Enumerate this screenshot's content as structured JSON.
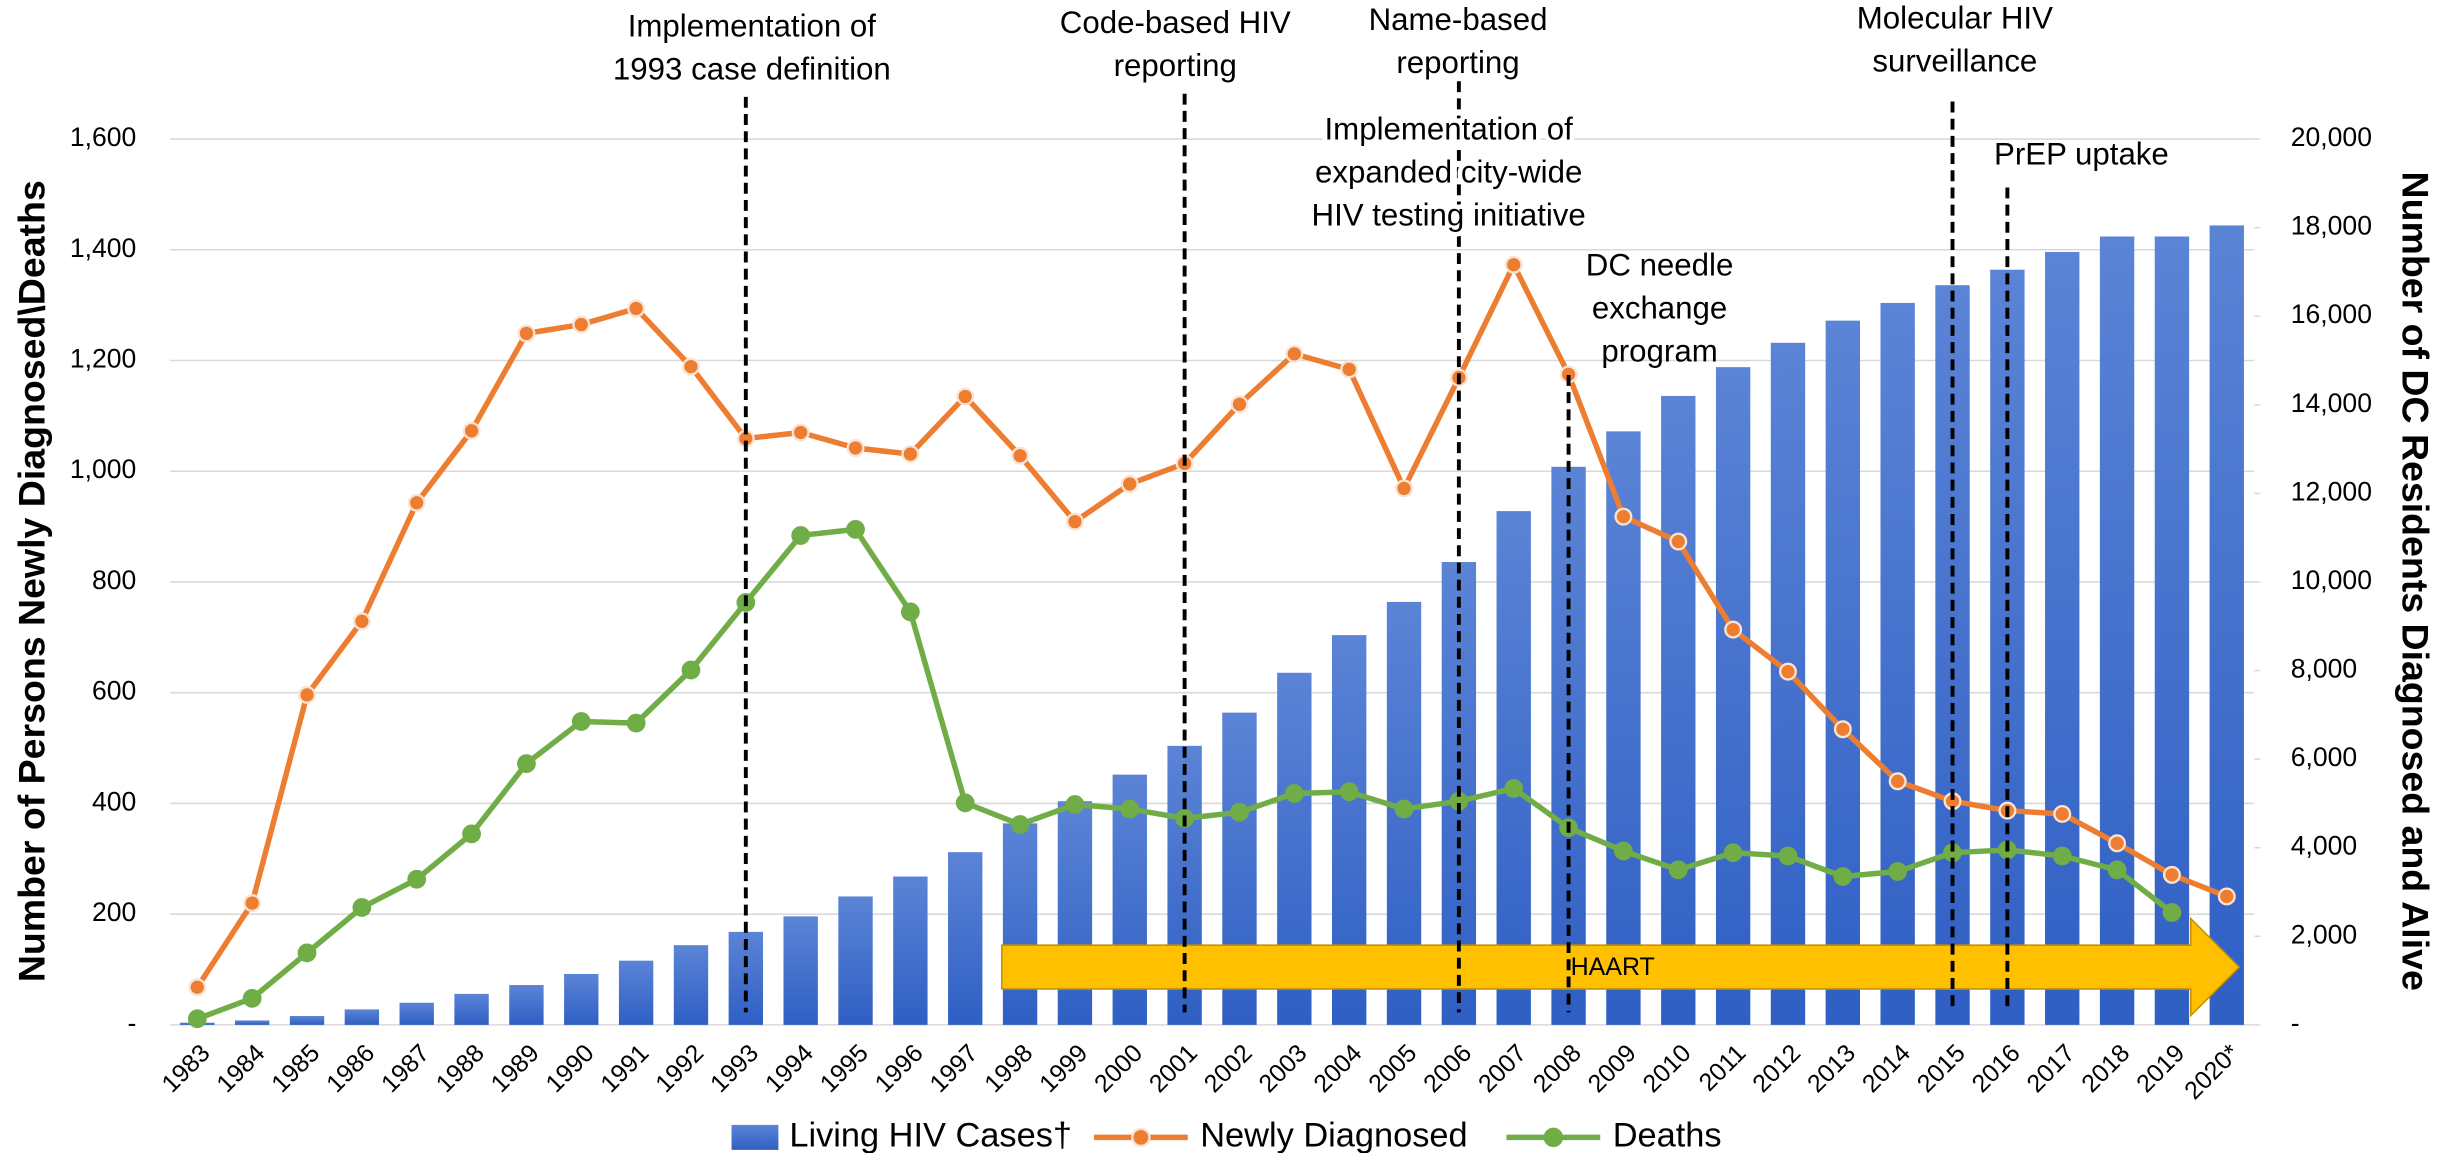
{
  "chart_data": {
    "type": "bar_line",
    "categories": [
      "1983",
      "1984",
      "1985",
      "1986",
      "1987",
      "1988",
      "1989",
      "1990",
      "1991",
      "1992",
      "1993",
      "1994",
      "1995",
      "1996",
      "1997",
      "1998",
      "1999",
      "2000",
      "2001",
      "2002",
      "2003",
      "2004",
      "2005",
      "2006",
      "2007",
      "2008",
      "2009",
      "2010",
      "2011",
      "2012",
      "2013",
      "2014",
      "2015",
      "2016",
      "2017",
      "2018",
      "2019",
      "2020*"
    ],
    "ylabel": "Number of Persons Newly Diagnosed\\Deaths",
    "y2label": "Number of DC Residents Diagnosed and Alive",
    "ylim": [
      0,
      1600
    ],
    "yticks": [
      {
        "value": 0,
        "label": "-"
      },
      200,
      400,
      600,
      800,
      {
        "value": 1000,
        "label": "1,000"
      },
      {
        "value": 1200,
        "label": "1,200"
      },
      {
        "value": 1400,
        "label": "1,400"
      },
      {
        "value": 1600,
        "label": "1,600"
      }
    ],
    "y2lim": [
      0,
      20000
    ],
    "y2ticks": [
      {
        "value": 0,
        "label": "-"
      },
      {
        "value": 2000,
        "label": "2,000"
      },
      {
        "value": 4000,
        "label": "4,000"
      },
      {
        "value": 6000,
        "label": "6,000"
      },
      {
        "value": 8000,
        "label": "8,000"
      },
      {
        "value": 10000,
        "label": "10,000"
      },
      {
        "value": 12000,
        "label": "12,000"
      },
      {
        "value": 14000,
        "label": "14,000"
      },
      {
        "value": 16000,
        "label": "16,000"
      },
      {
        "value": 18000,
        "label": "18,000"
      },
      {
        "value": 20000,
        "label": "20,000"
      }
    ],
    "grid": true,
    "legend": "bottom",
    "series": [
      {
        "name": "Living HIV Cases†",
        "kind": "bar",
        "axis": "y2",
        "color": "#3d6ccb",
        "values": [
          50,
          100,
          200,
          350,
          500,
          700,
          900,
          1150,
          1450,
          1800,
          2100,
          2450,
          2900,
          3350,
          3900,
          4550,
          5050,
          5650,
          6300,
          7050,
          7950,
          8800,
          9550,
          10450,
          11600,
          12600,
          13400,
          14200,
          14850,
          15400,
          15900,
          16300,
          16700,
          17050,
          17450,
          17800,
          17800,
          18050
        ]
      },
      {
        "name": "Newly Diagnosed",
        "kind": "line",
        "color": "#ed7d31",
        "values": [
          68,
          220,
          596,
          729,
          943,
          1073,
          1249,
          1265,
          1294,
          1189,
          1059,
          1070,
          1042,
          1031,
          1135,
          1028,
          909,
          977,
          1014,
          1121,
          1212,
          1184,
          969,
          1169,
          1373,
          1175,
          918,
          873,
          714,
          638,
          534,
          440,
          404,
          387,
          381,
          328,
          271,
          232
        ]
      },
      {
        "name": "Deaths",
        "kind": "line",
        "color": "#70ad47",
        "values": [
          11,
          48,
          130,
          212,
          263,
          345,
          472,
          548,
          545,
          641,
          763,
          884,
          895,
          746,
          401,
          362,
          398,
          390,
          373,
          384,
          418,
          421,
          390,
          404,
          427,
          356,
          314,
          280,
          311,
          305,
          268,
          277,
          311,
          316,
          305,
          280,
          203,
          null
        ]
      }
    ],
    "annotations": [
      {
        "x": "1993",
        "lines": [
          "Implementation of",
          "1993 case definition"
        ]
      },
      {
        "x": "2001",
        "lines": [
          "Code-based HIV",
          "reporting"
        ]
      },
      {
        "x": "2006",
        "lines": [
          "Name-based",
          "reporting"
        ]
      },
      {
        "x": "2006",
        "lines": [
          "Implementation of",
          "expanded city-wide",
          "HIV testing initiative"
        ]
      },
      {
        "x": "2008",
        "lines": [
          "DC needle",
          "exchange",
          "program"
        ]
      },
      {
        "x": "2015",
        "lines": [
          "Molecular HIV",
          "surveillance"
        ]
      },
      {
        "x": "2016",
        "lines": [
          "PrEP uptake"
        ]
      }
    ],
    "arrow": {
      "label": "HAART"
    }
  }
}
